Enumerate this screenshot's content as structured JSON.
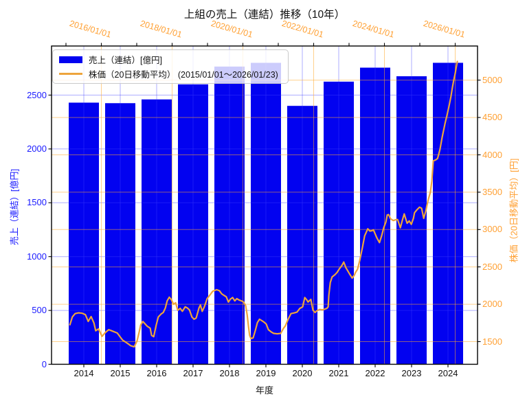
{
  "title": "上組の売上（連結）推移（10年）",
  "colors": {
    "bar_blue": "#0202f0",
    "left_axis_blue": "#1a1aff",
    "right_axis_orange": "#ffa033",
    "line_orange": "#eda43c",
    "grid_blue": "rgba(60,60,255,0.42)",
    "grid_orange": "rgba(255,170,45,0.55)"
  },
  "legend": {
    "bar_label": "売上（連結）[億円]",
    "line_label": "株価（20日移動平均） (2015/01/01～2026/01/23)"
  },
  "axes": {
    "x_bottom": {
      "label": "年度",
      "ticks": [
        2014,
        2015,
        2016,
        2017,
        2018,
        2019,
        2020,
        2021,
        2022,
        2023,
        2024
      ]
    },
    "x_top": {
      "tick_labels": [
        "2016/01/01",
        "2018/01/01",
        "2020/01/01",
        "2022/01/01",
        "2024/01/01",
        "2026/01/01"
      ],
      "tick_years": [
        2016,
        2018,
        2020,
        2022,
        2024,
        2026
      ],
      "minor_tick_years": [
        2015,
        2016,
        2017,
        2018,
        2019,
        2020,
        2021,
        2022,
        2023,
        2024,
        2025,
        2026
      ]
    },
    "y_left": {
      "label": "売上（連結）[億円]",
      "ticks": [
        0,
        500,
        1000,
        1500,
        2000,
        2500
      ]
    },
    "y_right": {
      "label": "株価（20日移動平均）[円]",
      "ticks": [
        1500,
        2000,
        2500,
        3000,
        3500,
        4000,
        4500,
        5000
      ]
    }
  },
  "chart_data": {
    "type": "bar",
    "title": "上組の売上（連結）推移（10年）",
    "xlabel": "年度",
    "ylabel": "売上（連結）[億円]",
    "ylabel_right": "株価（20日移動平均）[円]",
    "grid": true,
    "legend_position": "upper left",
    "bar_series": {
      "name": "売上（連結）[億円]",
      "categories": [
        2014,
        2015,
        2016,
        2017,
        2018,
        2019,
        2020,
        2021,
        2022,
        2023,
        2024
      ],
      "values": [
        2430,
        2425,
        2460,
        2600,
        2765,
        2800,
        2400,
        2625,
        2755,
        2675,
        2800
      ],
      "ylim": [
        0,
        2956
      ],
      "yticks": [
        0,
        500,
        1000,
        1500,
        2000,
        2500
      ]
    },
    "line_series": {
      "name": "株価（20日移動平均） (2015/01/01～2026/01/23)",
      "x_range": [
        "2015/01/01",
        "2026/01/23"
      ],
      "ylim": [
        1197,
        5452
      ],
      "yticks": [
        1500,
        2000,
        2500,
        3000,
        3500,
        4000,
        4500,
        5000
      ],
      "points": [
        [
          2015.11,
          1725
        ],
        [
          2015.18,
          1830
        ],
        [
          2015.26,
          1875
        ],
        [
          2015.36,
          1885
        ],
        [
          2015.46,
          1880
        ],
        [
          2015.55,
          1860
        ],
        [
          2015.63,
          1770
        ],
        [
          2015.71,
          1835
        ],
        [
          2015.79,
          1750
        ],
        [
          2015.84,
          1645
        ],
        [
          2015.92,
          1670
        ],
        [
          2016.02,
          1570
        ],
        [
          2016.12,
          1625
        ],
        [
          2016.21,
          1660
        ],
        [
          2016.29,
          1645
        ],
        [
          2016.37,
          1630
        ],
        [
          2016.45,
          1615
        ],
        [
          2016.52,
          1570
        ],
        [
          2016.6,
          1520
        ],
        [
          2016.68,
          1495
        ],
        [
          2016.76,
          1470
        ],
        [
          2016.83,
          1445
        ],
        [
          2016.93,
          1430
        ],
        [
          2017.01,
          1510
        ],
        [
          2017.07,
          1630
        ],
        [
          2017.11,
          1720
        ],
        [
          2017.17,
          1770
        ],
        [
          2017.22,
          1745
        ],
        [
          2017.3,
          1705
        ],
        [
          2017.38,
          1680
        ],
        [
          2017.42,
          1585
        ],
        [
          2017.48,
          1565
        ],
        [
          2017.55,
          1720
        ],
        [
          2017.61,
          1830
        ],
        [
          2017.69,
          1870
        ],
        [
          2017.75,
          1890
        ],
        [
          2017.81,
          1950
        ],
        [
          2017.86,
          2045
        ],
        [
          2017.92,
          2095
        ],
        [
          2017.98,
          2060
        ],
        [
          2018.04,
          2000
        ],
        [
          2018.1,
          2020
        ],
        [
          2018.16,
          1920
        ],
        [
          2018.23,
          1945
        ],
        [
          2018.29,
          1905
        ],
        [
          2018.37,
          1965
        ],
        [
          2018.43,
          1950
        ],
        [
          2018.49,
          1925
        ],
        [
          2018.56,
          1830
        ],
        [
          2018.62,
          1800
        ],
        [
          2018.68,
          1815
        ],
        [
          2018.76,
          1950
        ],
        [
          2018.8,
          1990
        ],
        [
          2018.85,
          1905
        ],
        [
          2018.91,
          1965
        ],
        [
          2018.99,
          2075
        ],
        [
          2019.07,
          2125
        ],
        [
          2019.15,
          2175
        ],
        [
          2019.26,
          2195
        ],
        [
          2019.34,
          2180
        ],
        [
          2019.4,
          2140
        ],
        [
          2019.46,
          2120
        ],
        [
          2019.53,
          2100
        ],
        [
          2019.59,
          2030
        ],
        [
          2019.65,
          2070
        ],
        [
          2019.71,
          2090
        ],
        [
          2019.77,
          2045
        ],
        [
          2019.83,
          2075
        ],
        [
          2019.88,
          2060
        ],
        [
          2019.96,
          2045
        ],
        [
          2020.02,
          2030
        ],
        [
          2020.08,
          1980
        ],
        [
          2020.12,
          1860
        ],
        [
          2020.16,
          1700
        ],
        [
          2020.19,
          1585
        ],
        [
          2020.23,
          1540
        ],
        [
          2020.29,
          1550
        ],
        [
          2020.35,
          1645
        ],
        [
          2020.41,
          1755
        ],
        [
          2020.47,
          1800
        ],
        [
          2020.52,
          1785
        ],
        [
          2020.6,
          1760
        ],
        [
          2020.66,
          1735
        ],
        [
          2020.72,
          1660
        ],
        [
          2020.8,
          1630
        ],
        [
          2020.87,
          1610
        ],
        [
          2020.97,
          1605
        ],
        [
          2021.07,
          1610
        ],
        [
          2021.15,
          1680
        ],
        [
          2021.2,
          1710
        ],
        [
          2021.28,
          1800
        ],
        [
          2021.36,
          1875
        ],
        [
          2021.46,
          1885
        ],
        [
          2021.53,
          1895
        ],
        [
          2021.61,
          1945
        ],
        [
          2021.69,
          1965
        ],
        [
          2021.75,
          2090
        ],
        [
          2021.81,
          2055
        ],
        [
          2021.84,
          2030
        ],
        [
          2021.92,
          2065
        ],
        [
          2021.98,
          1920
        ],
        [
          2022.04,
          1890
        ],
        [
          2022.1,
          1915
        ],
        [
          2022.17,
          1930
        ],
        [
          2022.25,
          1925
        ],
        [
          2022.31,
          1935
        ],
        [
          2022.37,
          1945
        ],
        [
          2022.41,
          1965
        ],
        [
          2022.43,
          2120
        ],
        [
          2022.47,
          2290
        ],
        [
          2022.52,
          2365
        ],
        [
          2022.6,
          2395
        ],
        [
          2022.66,
          2425
        ],
        [
          2022.72,
          2470
        ],
        [
          2022.8,
          2520
        ],
        [
          2022.85,
          2565
        ],
        [
          2022.91,
          2490
        ],
        [
          2023.01,
          2410
        ],
        [
          2023.09,
          2350
        ],
        [
          2023.15,
          2390
        ],
        [
          2023.18,
          2425
        ],
        [
          2023.24,
          2470
        ],
        [
          2023.3,
          2580
        ],
        [
          2023.38,
          2765
        ],
        [
          2023.44,
          2915
        ],
        [
          2023.53,
          3010
        ],
        [
          2023.59,
          2980
        ],
        [
          2023.65,
          2985
        ],
        [
          2023.69,
          2995
        ],
        [
          2023.79,
          2885
        ],
        [
          2023.86,
          2825
        ],
        [
          2023.92,
          2915
        ],
        [
          2023.98,
          3025
        ],
        [
          2024.04,
          3100
        ],
        [
          2024.08,
          3195
        ],
        [
          2024.12,
          3200
        ],
        [
          2024.17,
          3145
        ],
        [
          2024.25,
          3120
        ],
        [
          2024.31,
          3130
        ],
        [
          2024.37,
          3135
        ],
        [
          2024.45,
          3025
        ],
        [
          2024.5,
          3115
        ],
        [
          2024.56,
          3210
        ],
        [
          2024.64,
          3085
        ],
        [
          2024.7,
          3115
        ],
        [
          2024.76,
          3070
        ],
        [
          2024.82,
          3150
        ],
        [
          2024.85,
          3225
        ],
        [
          2024.91,
          3260
        ],
        [
          2024.99,
          3300
        ],
        [
          2025.05,
          3285
        ],
        [
          2025.11,
          3150
        ],
        [
          2025.17,
          3250
        ],
        [
          2025.2,
          3320
        ],
        [
          2025.24,
          3405
        ],
        [
          2025.3,
          3500
        ],
        [
          2025.34,
          3650
        ],
        [
          2025.38,
          3920
        ],
        [
          2025.44,
          3930
        ],
        [
          2025.5,
          3950
        ],
        [
          2025.53,
          4000
        ],
        [
          2025.57,
          4075
        ],
        [
          2025.63,
          4230
        ],
        [
          2025.71,
          4415
        ],
        [
          2025.77,
          4535
        ],
        [
          2025.83,
          4660
        ],
        [
          2025.88,
          4780
        ],
        [
          2025.92,
          4900
        ],
        [
          2025.96,
          5000
        ],
        [
          2026.0,
          5090
        ],
        [
          2026.03,
          5170
        ],
        [
          2026.06,
          5250
        ]
      ]
    }
  }
}
